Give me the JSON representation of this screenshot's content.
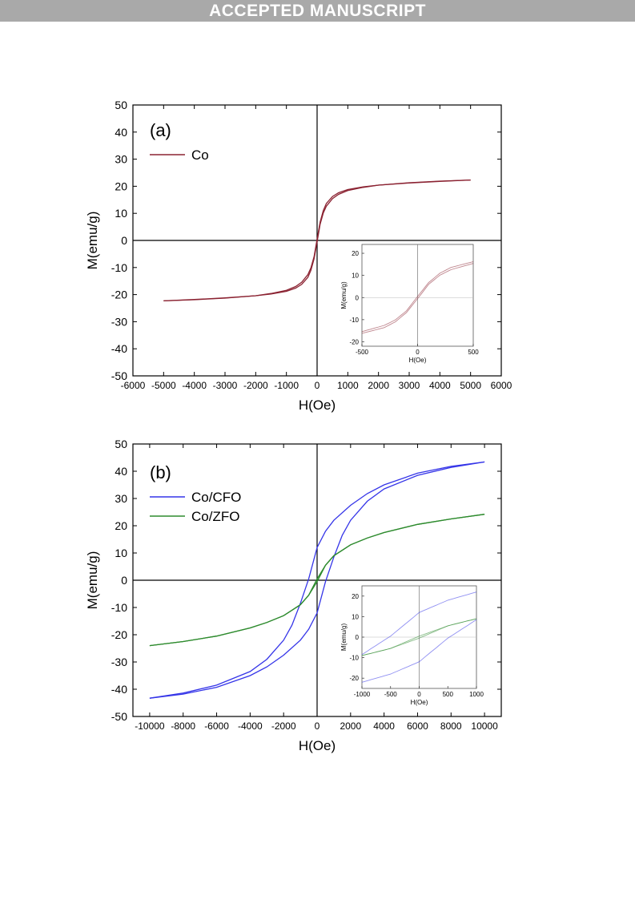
{
  "header": {
    "banner_text": "ACCEPTED MANUSCRIPT"
  },
  "chart_data": [
    {
      "type": "line",
      "panel_label": "(a)",
      "xlabel": "H(Oe)",
      "ylabel": "M(emu/g)",
      "xlim": [
        -6000,
        6000
      ],
      "ylim": [
        -50,
        50
      ],
      "xticks": [
        -6000,
        -5000,
        -4000,
        -3000,
        -2000,
        -1000,
        0,
        1000,
        2000,
        3000,
        4000,
        5000,
        6000
      ],
      "yticks": [
        -50,
        -40,
        -30,
        -20,
        -10,
        0,
        10,
        20,
        30,
        40,
        50
      ],
      "legend_position": "top-left",
      "series": [
        {
          "name": "Co",
          "color": "#8b2332",
          "upper": [
            [
              -5000,
              -22.3
            ],
            [
              -4000,
              -21.9
            ],
            [
              -3000,
              -21.3
            ],
            [
              -2000,
              -20.4
            ],
            [
              -1500,
              -19.6
            ],
            [
              -1000,
              -18.4
            ],
            [
              -700,
              -17.0
            ],
            [
              -500,
              -15.4
            ],
            [
              -300,
              -12.6
            ],
            [
              -200,
              -10.1
            ],
            [
              -100,
              -6.0
            ],
            [
              0,
              0.5
            ],
            [
              100,
              6.8
            ],
            [
              200,
              11.0
            ],
            [
              300,
              13.6
            ],
            [
              500,
              16.2
            ],
            [
              700,
              17.6
            ],
            [
              1000,
              18.8
            ],
            [
              1500,
              19.8
            ],
            [
              2000,
              20.4
            ],
            [
              3000,
              21.2
            ],
            [
              4000,
              21.8
            ],
            [
              5000,
              22.3
            ]
          ],
          "lower": [
            [
              -5000,
              -22.3
            ],
            [
              -4000,
              -21.8
            ],
            [
              -3000,
              -21.2
            ],
            [
              -2000,
              -20.4
            ],
            [
              -1500,
              -19.8
            ],
            [
              -1000,
              -18.8
            ],
            [
              -700,
              -17.6
            ],
            [
              -500,
              -16.2
            ],
            [
              -300,
              -13.6
            ],
            [
              -200,
              -11.0
            ],
            [
              -100,
              -6.8
            ],
            [
              0,
              -0.5
            ],
            [
              100,
              6.0
            ],
            [
              200,
              10.1
            ],
            [
              300,
              12.6
            ],
            [
              500,
              15.4
            ],
            [
              700,
              17.0
            ],
            [
              1000,
              18.4
            ],
            [
              1500,
              19.6
            ],
            [
              2000,
              20.4
            ],
            [
              3000,
              21.3
            ],
            [
              4000,
              21.9
            ],
            [
              5000,
              22.3
            ]
          ]
        }
      ],
      "inset": {
        "xlabel": "H(Oe)",
        "ylabel": "M(emu/g)",
        "xlim": [
          -500,
          500
        ],
        "ylim": [
          -22,
          24
        ],
        "xticks": [
          -500,
          0,
          500
        ],
        "yticks": [
          -20,
          -10,
          0,
          10,
          20
        ]
      }
    },
    {
      "type": "line",
      "panel_label": "(b)",
      "xlabel": "H(Oe)",
      "ylabel": "M(emu/g)",
      "xlim": [
        -11000,
        11000
      ],
      "ylim": [
        -50,
        50
      ],
      "xticks": [
        -10000,
        -8000,
        -6000,
        -4000,
        -2000,
        0,
        2000,
        4000,
        6000,
        8000,
        10000
      ],
      "yticks": [
        -50,
        -40,
        -30,
        -20,
        -10,
        0,
        10,
        20,
        30,
        40,
        50
      ],
      "legend_position": "top-left",
      "series": [
        {
          "name": "Co/CFO",
          "color": "#3535e8",
          "upper": [
            [
              -10000,
              -43.3
            ],
            [
              -8000,
              -41.4
            ],
            [
              -6000,
              -38.5
            ],
            [
              -4000,
              -33.5
            ],
            [
              -3000,
              -29.0
            ],
            [
              -2000,
              -22.0
            ],
            [
              -1500,
              -16.5
            ],
            [
              -1000,
              -8.5
            ],
            [
              -500,
              0.5
            ],
            [
              0,
              12.0
            ],
            [
              500,
              18.0
            ],
            [
              1000,
              22.0
            ],
            [
              2000,
              27.5
            ],
            [
              3000,
              31.8
            ],
            [
              4000,
              35.0
            ],
            [
              6000,
              39.3
            ],
            [
              8000,
              41.8
            ],
            [
              10000,
              43.4
            ]
          ],
          "lower": [
            [
              -10000,
              -43.3
            ],
            [
              -8000,
              -41.8
            ],
            [
              -6000,
              -39.3
            ],
            [
              -4000,
              -35.0
            ],
            [
              -3000,
              -31.8
            ],
            [
              -2000,
              -27.5
            ],
            [
              -1000,
              -22.0
            ],
            [
              -500,
              -18.0
            ],
            [
              0,
              -12.0
            ],
            [
              500,
              -0.5
            ],
            [
              1000,
              8.5
            ],
            [
              1500,
              16.5
            ],
            [
              2000,
              22.0
            ],
            [
              3000,
              29.0
            ],
            [
              4000,
              33.5
            ],
            [
              6000,
              38.5
            ],
            [
              8000,
              41.4
            ],
            [
              10000,
              43.4
            ]
          ]
        },
        {
          "name": "Co/ZFO",
          "color": "#2e8b2e",
          "upper": [
            [
              -10000,
              -24.0
            ],
            [
              -8000,
              -22.5
            ],
            [
              -6000,
              -20.5
            ],
            [
              -4000,
              -17.5
            ],
            [
              -3000,
              -15.5
            ],
            [
              -2000,
              -13.0
            ],
            [
              -1000,
              -9.0
            ],
            [
              -500,
              -5.5
            ],
            [
              0,
              0.5
            ],
            [
              500,
              5.5
            ],
            [
              1000,
              9.0
            ],
            [
              2000,
              13.0
            ],
            [
              3000,
              15.5
            ],
            [
              4000,
              17.5
            ],
            [
              6000,
              20.5
            ],
            [
              8000,
              22.5
            ],
            [
              10000,
              24.2
            ]
          ],
          "lower": [
            [
              -10000,
              -24.0
            ],
            [
              -8000,
              -22.5
            ],
            [
              -6000,
              -20.5
            ],
            [
              -4000,
              -17.5
            ],
            [
              -3000,
              -15.5
            ],
            [
              -2000,
              -13.0
            ],
            [
              -1000,
              -9.0
            ],
            [
              -500,
              -5.5
            ],
            [
              0,
              -0.5
            ],
            [
              500,
              5.5
            ],
            [
              1000,
              9.0
            ],
            [
              2000,
              13.0
            ],
            [
              3000,
              15.5
            ],
            [
              4000,
              17.5
            ],
            [
              6000,
              20.5
            ],
            [
              8000,
              22.5
            ],
            [
              10000,
              24.2
            ]
          ]
        }
      ],
      "inset": {
        "xlabel": "H(Oe)",
        "ylabel": "M(emu/g)",
        "xlim": [
          -1000,
          1000
        ],
        "ylim": [
          -25,
          25
        ],
        "xticks": [
          -1000,
          -500,
          0,
          500,
          1000
        ],
        "yticks": [
          -20,
          -10,
          0,
          10,
          20
        ]
      }
    }
  ]
}
